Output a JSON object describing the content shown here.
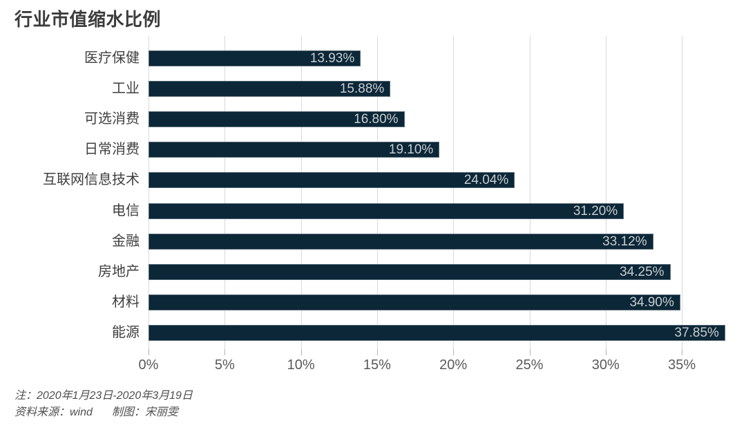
{
  "title": "行业市值缩水比例",
  "chart_data": {
    "type": "bar",
    "orientation": "horizontal",
    "title": "行业市值缩水比例",
    "categories": [
      "医疗保健",
      "工业",
      "可选消费",
      "日常消费",
      "互联网信息技术",
      "电信",
      "金融",
      "房地产",
      "材料",
      "能源"
    ],
    "values": [
      13.93,
      15.88,
      16.8,
      19.1,
      24.04,
      31.2,
      33.12,
      34.25,
      34.9,
      37.85
    ],
    "value_labels": [
      "13.93%",
      "15.88%",
      "16.80%",
      "19.10%",
      "24.04%",
      "31.20%",
      "33.12%",
      "34.25%",
      "34.90%",
      "37.85%"
    ],
    "x_tick_values": [
      0,
      5,
      10,
      15,
      20,
      25,
      30,
      35
    ],
    "x_tick_labels": [
      "0%",
      "5%",
      "10%",
      "15%",
      "20%",
      "25%",
      "30%",
      "35%"
    ],
    "xlim": [
      0,
      39.2
    ],
    "grid": "vertical-only",
    "legend": "none",
    "bar_color": "#0c2737",
    "value_label_color": "#c8cdd2",
    "gridline_color": "#d9d9d9",
    "axis_label_color": "#595959",
    "category_label_color": "#3e3e3e"
  },
  "notes": {
    "line1": "注：2020年1月23日-2020年3月19日",
    "line2_source": "资料来源：wind",
    "line2_author": "制图：宋丽雯"
  }
}
